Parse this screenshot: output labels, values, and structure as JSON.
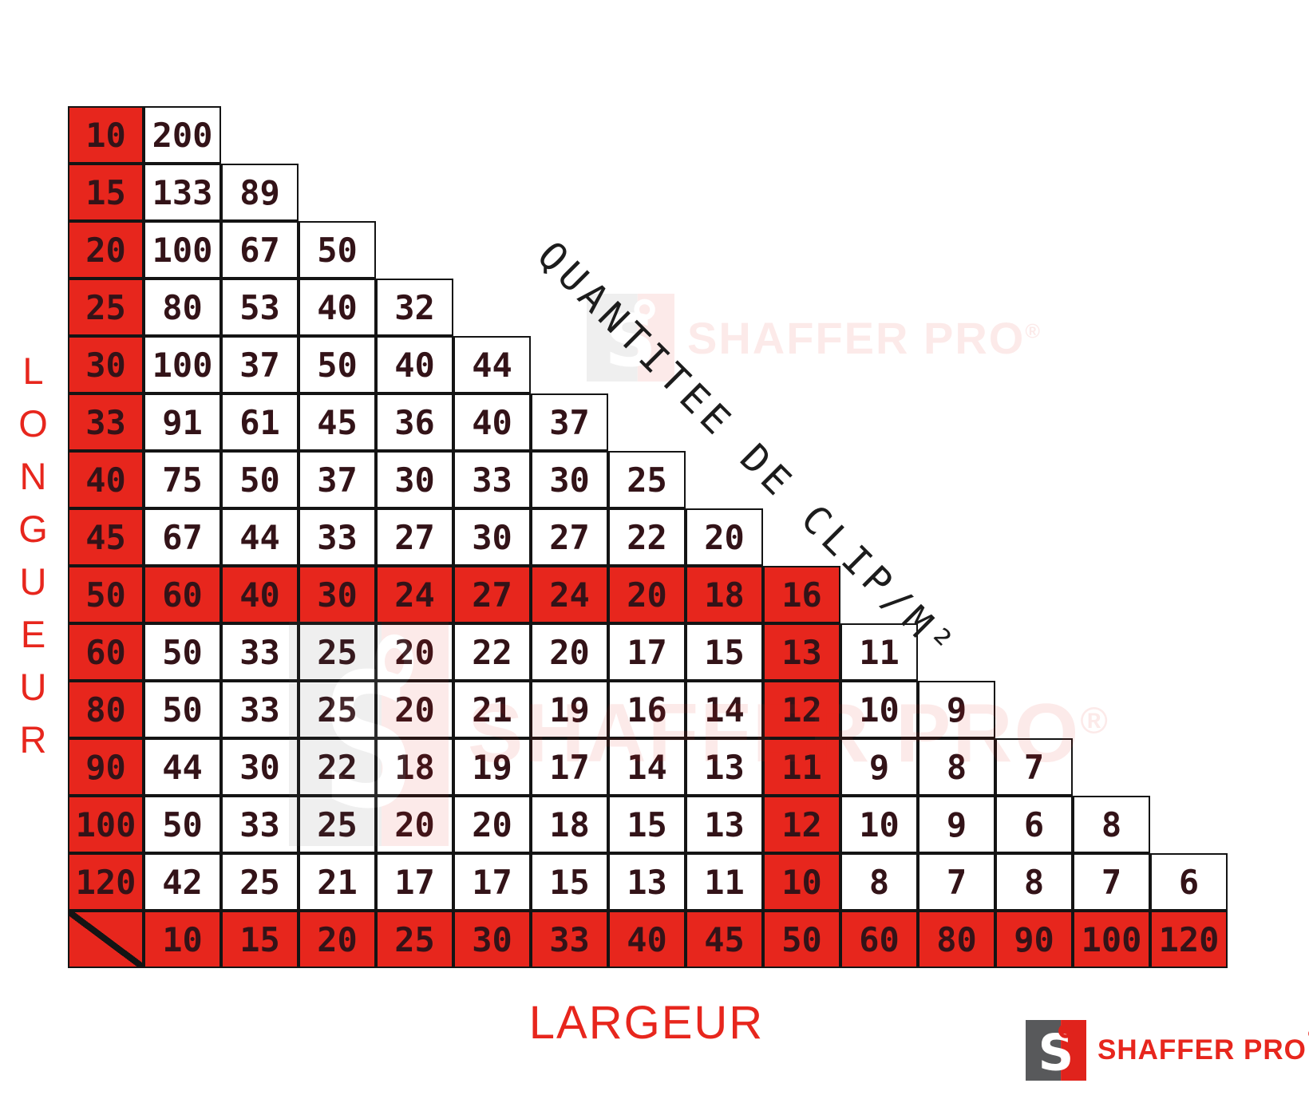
{
  "title": "QUANTITEE DE CLIP/M²",
  "y_axis_label": "LONGUEUR",
  "x_axis_label": "LARGEUR",
  "watermark": {
    "text": "SHAFFER PRO",
    "registered": "®"
  },
  "logo": {
    "text": "SHAFFER PRO",
    "registered": "®"
  },
  "colors": {
    "accent_red": "#e7261d",
    "cell_text": "#331318",
    "grid_line": "#141414",
    "logo_gray": "#58595b",
    "logo_red": "#e0231c"
  },
  "chart_data": {
    "type": "table",
    "title": "QUANTITEE DE CLIP/M²",
    "xlabel": "LARGEUR",
    "ylabel": "LONGUEUR",
    "col_headers": [
      "10",
      "15",
      "20",
      "25",
      "30",
      "33",
      "40",
      "45",
      "50",
      "60",
      "80",
      "90",
      "100",
      "120"
    ],
    "rows": [
      {
        "header": "10",
        "values": [
          "200"
        ]
      },
      {
        "header": "15",
        "values": [
          "133",
          "89"
        ]
      },
      {
        "header": "20",
        "values": [
          "100",
          "67",
          "50"
        ]
      },
      {
        "header": "25",
        "values": [
          "80",
          "53",
          "40",
          "32"
        ]
      },
      {
        "header": "30",
        "values": [
          "100",
          "37",
          "50",
          "40",
          "44"
        ]
      },
      {
        "header": "33",
        "values": [
          "91",
          "61",
          "45",
          "36",
          "40",
          "37"
        ]
      },
      {
        "header": "40",
        "values": [
          "75",
          "50",
          "37",
          "30",
          "33",
          "30",
          "25"
        ]
      },
      {
        "header": "45",
        "values": [
          "67",
          "44",
          "33",
          "27",
          "30",
          "27",
          "22",
          "20"
        ]
      },
      {
        "header": "50",
        "values": [
          "60",
          "40",
          "30",
          "24",
          "27",
          "24",
          "20",
          "18",
          "16"
        ]
      },
      {
        "header": "60",
        "values": [
          "50",
          "33",
          "25",
          "20",
          "22",
          "20",
          "17",
          "15",
          "13",
          "11"
        ]
      },
      {
        "header": "80",
        "values": [
          "50",
          "33",
          "25",
          "20",
          "21",
          "19",
          "16",
          "14",
          "12",
          "10",
          "9"
        ]
      },
      {
        "header": "90",
        "values": [
          "44",
          "30",
          "22",
          "18",
          "19",
          "17",
          "14",
          "13",
          "11",
          "9",
          "8",
          "7"
        ]
      },
      {
        "header": "100",
        "values": [
          "50",
          "33",
          "25",
          "20",
          "20",
          "18",
          "15",
          "13",
          "12",
          "10",
          "9",
          "6",
          "8"
        ]
      },
      {
        "header": "120",
        "values": [
          "42",
          "25",
          "21",
          "17",
          "17",
          "15",
          "13",
          "11",
          "10",
          "8",
          "7",
          "8",
          "7",
          "6"
        ]
      }
    ],
    "highlight": {
      "row_header": "50",
      "col_header": "50"
    },
    "legend_position": "none",
    "grid": true
  }
}
